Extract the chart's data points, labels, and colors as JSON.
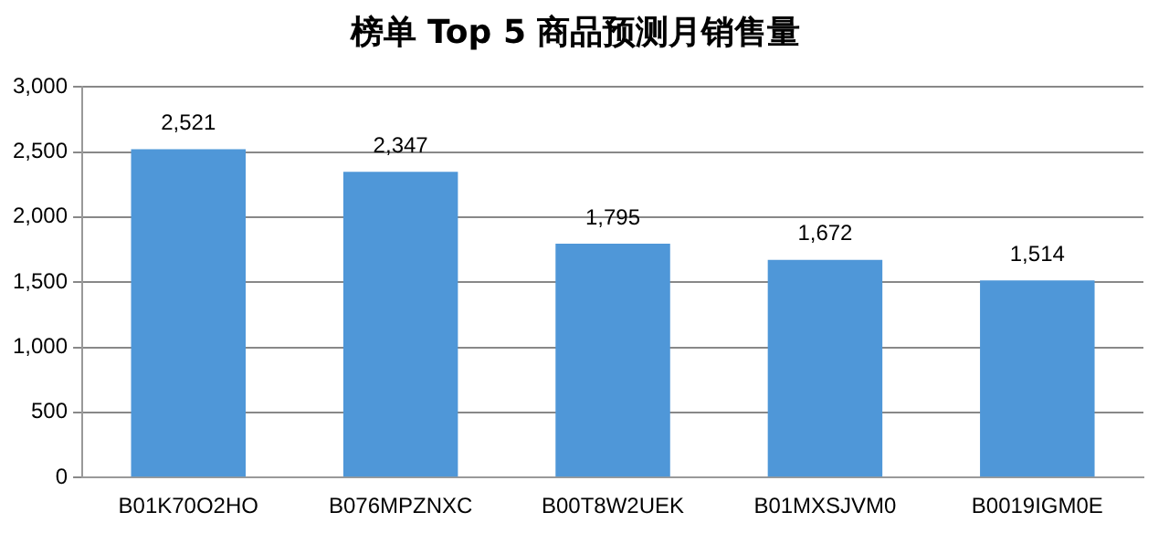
{
  "chart_data": {
    "type": "bar",
    "title": "榜单 Top 5 商品预测月销售量",
    "categories": [
      "B01K70O2HO",
      "B076MPZNXC",
      "B00T8W2UEK",
      "B01MXSJVM0",
      "B0019IGM0E"
    ],
    "values": [
      2521,
      2347,
      1795,
      1672,
      1514
    ],
    "value_labels": [
      "2,521",
      "2,347",
      "1,795",
      "1,672",
      "1,514"
    ],
    "color": "#4f97d8",
    "ylim": [
      0,
      3000
    ],
    "yticks": [
      {
        "value": 0,
        "label": "0"
      },
      {
        "value": 500,
        "label": "500"
      },
      {
        "value": 1000,
        "label": "1,000"
      },
      {
        "value": 1500,
        "label": "1,500"
      },
      {
        "value": 2000,
        "label": "2,000"
      },
      {
        "value": 2500,
        "label": "2,500"
      },
      {
        "value": 3000,
        "label": "3,000"
      }
    ],
    "grid": "y"
  }
}
